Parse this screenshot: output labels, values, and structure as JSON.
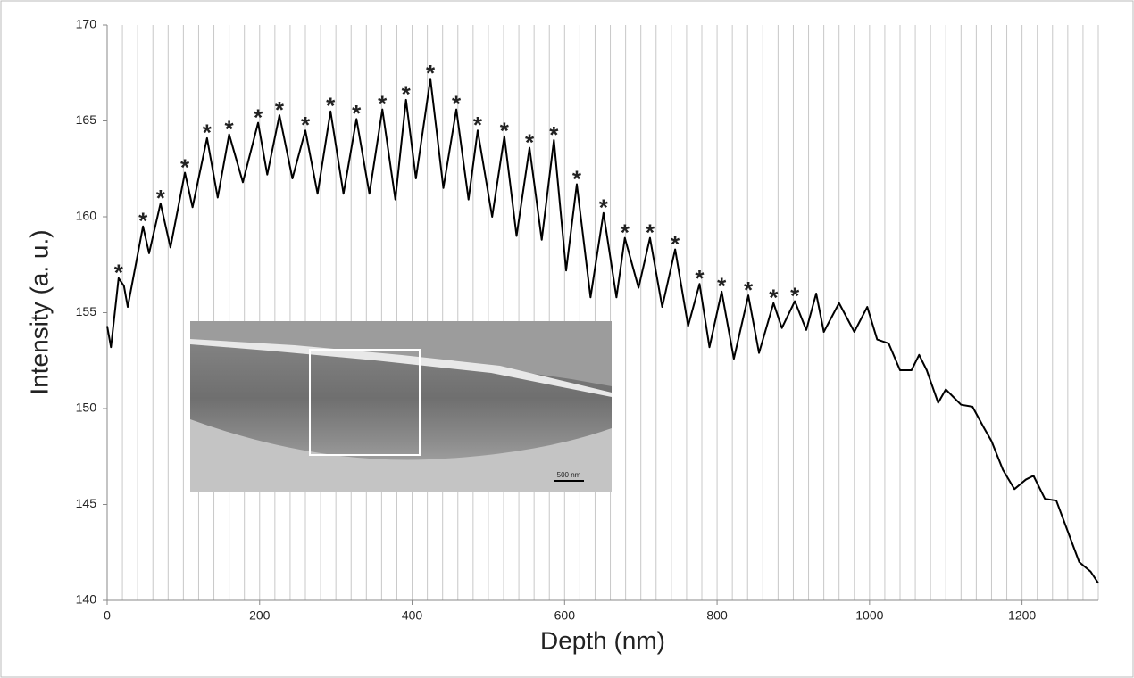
{
  "chart_data": {
    "type": "line",
    "x_label": "Depth (nm)",
    "y_label": "Intensity (a. u.)",
    "xlim": [
      0,
      1300
    ],
    "ylim": [
      140,
      170
    ],
    "xticks": [
      0,
      200,
      400,
      600,
      800,
      1000,
      1200
    ],
    "yticks": [
      140,
      145,
      150,
      155,
      160,
      165,
      170
    ],
    "xgrid": [
      0,
      20,
      40,
      60,
      80,
      100,
      120,
      140,
      160,
      180,
      200,
      220,
      240,
      260,
      280,
      300,
      320,
      340,
      360,
      380,
      400,
      420,
      440,
      460,
      480,
      500,
      520,
      540,
      560,
      580,
      600,
      620,
      640,
      660,
      680,
      700,
      720,
      740,
      760,
      780,
      800,
      820,
      840,
      860,
      880,
      900,
      920,
      940,
      960,
      980,
      1000,
      1020,
      1040,
      1060,
      1080,
      1100,
      1120,
      1140,
      1160,
      1180,
      1200,
      1220,
      1240,
      1260,
      1280,
      1300
    ],
    "color": "#000000",
    "x": [
      0,
      5,
      15,
      22,
      27,
      47,
      55,
      70,
      83,
      102,
      112,
      131,
      145,
      160,
      178,
      198,
      210,
      226,
      243,
      260,
      276,
      293,
      310,
      327,
      344,
      361,
      378,
      392,
      405,
      424,
      441,
      458,
      474,
      486,
      505,
      521,
      537,
      554,
      570,
      586,
      602,
      616,
      634,
      651,
      668,
      679,
      697,
      712,
      728,
      745,
      762,
      777,
      790,
      806,
      822,
      841,
      855,
      874,
      885,
      902,
      917,
      930,
      940,
      960,
      980,
      997,
      1010,
      1025,
      1040,
      1055,
      1065,
      1075,
      1090,
      1100,
      1120,
      1135,
      1150,
      1160,
      1175,
      1190,
      1205,
      1215,
      1230,
      1245,
      1260,
      1275,
      1290,
      1300
    ],
    "values": [
      154.3,
      153.2,
      156.8,
      156.4,
      155.3,
      159.5,
      158.1,
      160.7,
      158.4,
      162.3,
      160.5,
      164.1,
      161.0,
      164.3,
      161.8,
      164.9,
      162.2,
      165.3,
      162.0,
      164.5,
      161.2,
      165.5,
      161.2,
      165.1,
      161.2,
      165.6,
      160.9,
      166.1,
      162.0,
      167.2,
      161.5,
      165.6,
      160.9,
      164.5,
      160.0,
      164.2,
      159.0,
      163.6,
      158.8,
      164.0,
      157.2,
      161.7,
      155.8,
      160.2,
      155.8,
      158.9,
      156.3,
      158.9,
      155.3,
      158.3,
      154.3,
      156.5,
      153.2,
      156.1,
      152.6,
      155.9,
      152.9,
      155.5,
      154.2,
      155.6,
      154.1,
      156.0,
      154.0,
      155.5,
      154.0,
      155.3,
      153.6,
      153.4,
      152.0,
      152.0,
      152.8,
      152.0,
      150.3,
      151.0,
      150.2,
      150.1,
      149.0,
      148.3,
      146.8,
      145.8,
      146.3,
      146.5,
      145.3,
      145.2,
      143.6,
      142.0,
      141.5,
      140.9
    ],
    "marker_text": "*",
    "marker_x": [
      15,
      47,
      70,
      102,
      131,
      160,
      198,
      226,
      260,
      293,
      327,
      361,
      392,
      424,
      458,
      486,
      521,
      554,
      586,
      616,
      651,
      679,
      712,
      745,
      777,
      806,
      841,
      874,
      902
    ],
    "marker_y": [
      156.8,
      159.5,
      160.7,
      162.3,
      164.1,
      164.3,
      164.9,
      165.3,
      164.5,
      165.5,
      165.1,
      165.6,
      166.1,
      167.2,
      165.6,
      164.5,
      164.2,
      163.6,
      164.0,
      161.7,
      160.2,
      158.9,
      158.9,
      158.3,
      156.5,
      156.1,
      155.9,
      155.5,
      155.6
    ],
    "inset_scale_label": "500 nm"
  }
}
